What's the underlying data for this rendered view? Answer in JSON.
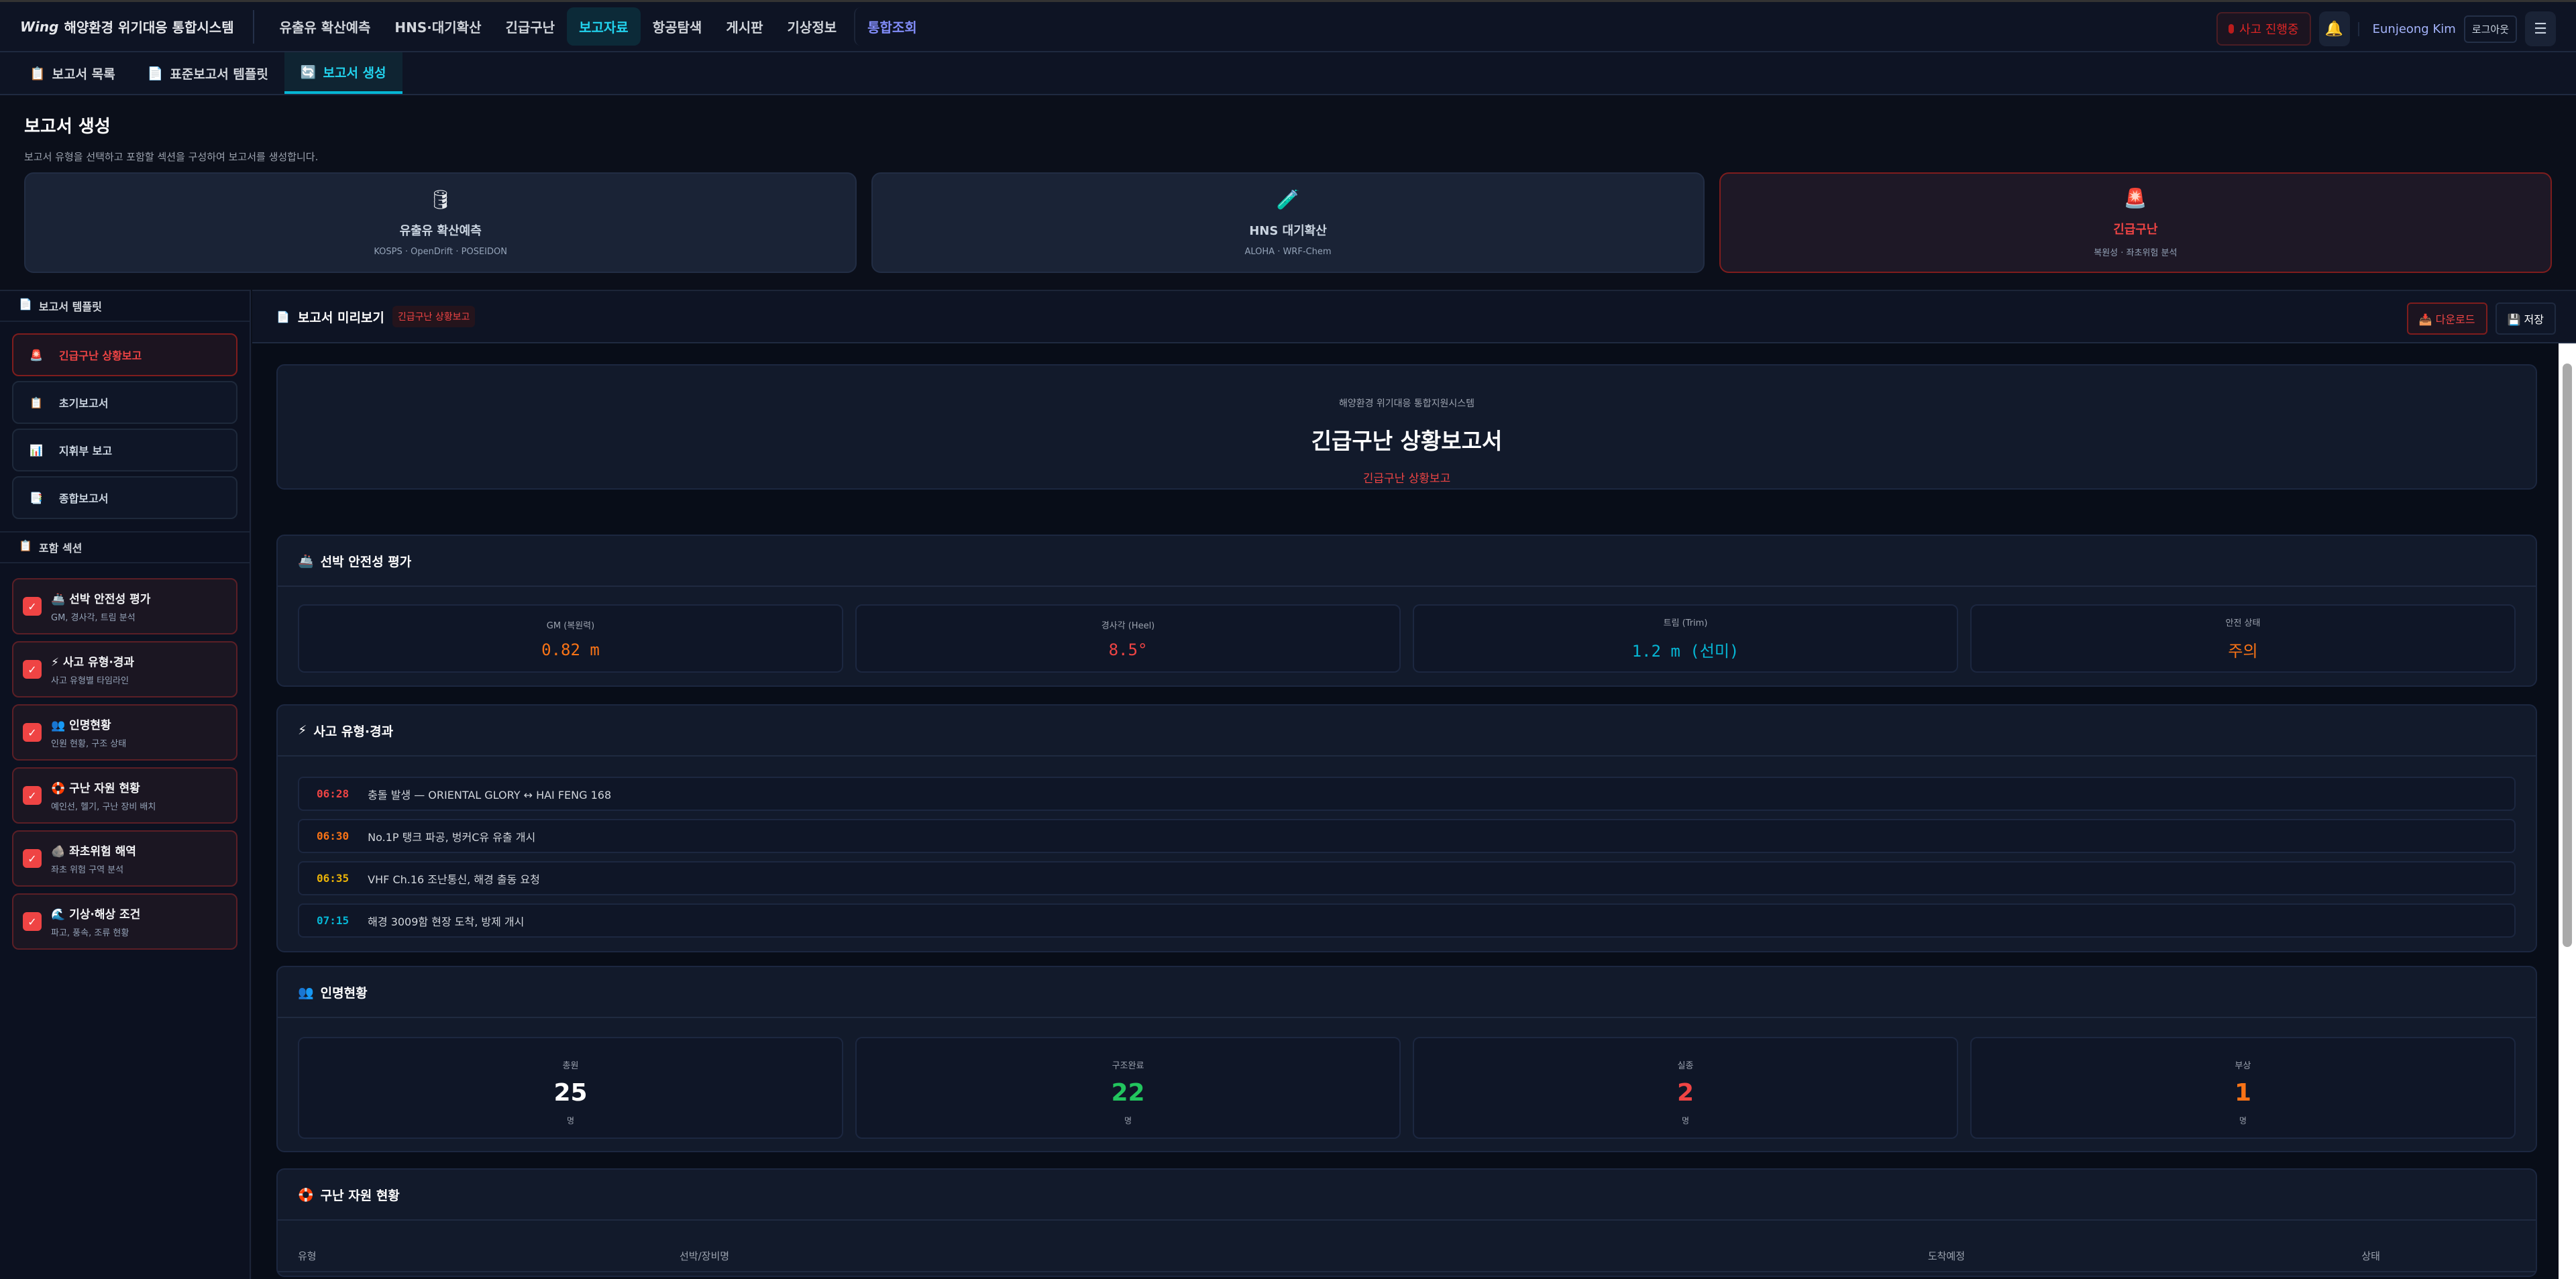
{
  "brand": {
    "logo": "Wing",
    "title": "해양환경 위기대응 통합시스템"
  },
  "nav": [
    {
      "label": "유출유 확산예측"
    },
    {
      "label": "HNS·대기확산"
    },
    {
      "label": "긴급구난"
    },
    {
      "label": "보고자료",
      "active": true
    },
    {
      "label": "항공탐색"
    },
    {
      "label": "게시판"
    },
    {
      "label": "기상정보"
    },
    {
      "label": "통합조회"
    }
  ],
  "header_right": {
    "incident": "사고 진행중",
    "user": "Eunjeong Kim",
    "logout": "로그아웃",
    "bell_icon": "bell-icon",
    "menu_icon": "hamburger-icon"
  },
  "subtabs": [
    {
      "label": "보고서 목록",
      "icon": "clipboard-icon"
    },
    {
      "label": "표준보고서 템플릿",
      "icon": "document-icon"
    },
    {
      "label": "보고서 생성",
      "icon": "refresh-icon",
      "active": true
    }
  ],
  "page": {
    "title": "보고서 생성",
    "subtitle": "보고서 유형을 선택하고 포함할 섹션을 구성하여 보고서를 생성합니다."
  },
  "report_types": [
    {
      "icon": "🛢",
      "title": "유출유 확산예측",
      "sub": "KOSPS · OpenDrift · POSEIDON"
    },
    {
      "icon": "🧪",
      "title": "HNS 대기확산",
      "sub": "ALOHA · WRF-Chem"
    },
    {
      "icon": "🚨",
      "title": "긴급구난",
      "sub": "복원성 · 좌초위험 분석",
      "selected": true
    }
  ],
  "sidebar": {
    "templates_title": "보고서 템플릿",
    "templates": [
      {
        "icon": "🚨",
        "label": "긴급구난 상황보고",
        "selected": true
      },
      {
        "icon": "📋",
        "label": "초기보고서"
      },
      {
        "icon": "📊",
        "label": "지휘부 보고"
      },
      {
        "icon": "📑",
        "label": "종합보고서"
      }
    ],
    "sections_title": "포함 섹션",
    "sections": [
      {
        "icon": "🚢",
        "title": "선박 안전성 평가",
        "sub": "GM, 경사각, 트림 분석"
      },
      {
        "icon": "⚡",
        "title": "사고 유형·경과",
        "sub": "사고 유형별 타임라인"
      },
      {
        "icon": "👥",
        "title": "인명현황",
        "sub": "인원 현황, 구조 상태"
      },
      {
        "icon": "🛟",
        "title": "구난 자원 현황",
        "sub": "예인선, 헬기, 구난 장비 배치"
      },
      {
        "icon": "🪨",
        "title": "좌초위험 해역",
        "sub": "좌초 위험 구역 분석"
      },
      {
        "icon": "🌊",
        "title": "기상·해상 조건",
        "sub": "파고, 풍속, 조류 현황"
      }
    ]
  },
  "preview": {
    "title": "보고서 미리보기",
    "badge": "긴급구난 상황보고",
    "download": "다운로드",
    "save": "저장",
    "org": "해양환경 위기대응 통합지원시스템",
    "report_title": "긴급구난 상황보고서",
    "report_sub": "긴급구난 상황보고",
    "safety": {
      "title": "선박 안전성 평가",
      "stats": [
        {
          "label": "GM (복원력)",
          "value": "0.82 m",
          "color": "#f97316"
        },
        {
          "label": "경사각 (Heel)",
          "value": "8.5°",
          "color": "#ef4444"
        },
        {
          "label": "트림 (Trim)",
          "value": "1.2 m (선미)",
          "color": "#06b6d4"
        },
        {
          "label": "안전 상태",
          "value": "주의",
          "color": "#f97316"
        }
      ]
    },
    "timeline": {
      "title": "사고 유형·경과",
      "events": [
        {
          "time": "06:28",
          "text": "충돌 발생 — ORIENTAL GLORY ↔ HAI FENG 168",
          "color": "#ef4444"
        },
        {
          "time": "06:30",
          "text": "No.1P 탱크 파공, 벙커C유 유출 개시",
          "color": "#f97316"
        },
        {
          "time": "06:35",
          "text": "VHF Ch.16 조난통신, 해경 출동 요청",
          "color": "#eab308"
        },
        {
          "time": "07:15",
          "text": "해경 3009함 현장 도착, 방제 개시",
          "color": "#06b6d4"
        }
      ]
    },
    "persons": {
      "title": "인명현황",
      "stats": [
        {
          "label": "총원",
          "value": "25",
          "unit": "명",
          "color": "#ffffff"
        },
        {
          "label": "구조완료",
          "value": "22",
          "unit": "명",
          "color": "#22c55e"
        },
        {
          "label": "실종",
          "value": "2",
          "unit": "명",
          "color": "#ef4444"
        },
        {
          "label": "부상",
          "value": "1",
          "unit": "명",
          "color": "#f97316"
        }
      ]
    },
    "resources": {
      "title": "구난 자원 현황",
      "columns": [
        "유형",
        "선박/장비명",
        "도착예정",
        "상태"
      ]
    }
  }
}
